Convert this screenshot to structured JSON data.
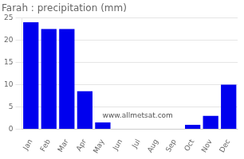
{
  "chart_data": {
    "type": "bar",
    "title": "Farah : precipitation (mm)",
    "categories": [
      "Jan",
      "Feb",
      "Mar",
      "Apr",
      "May",
      "Jun",
      "Jul",
      "Aug",
      "Sep",
      "Oct",
      "Nov",
      "Dec"
    ],
    "values": [
      24,
      22.5,
      22.5,
      8.5,
      1.5,
      0,
      0,
      0,
      0,
      1,
      3,
      10
    ],
    "color": "#0000ee",
    "ylim": [
      0,
      25
    ],
    "yticks": [
      0,
      5,
      10,
      15,
      20,
      25
    ],
    "grid": true,
    "annotations": [
      "www.allmetsat.com"
    ]
  }
}
